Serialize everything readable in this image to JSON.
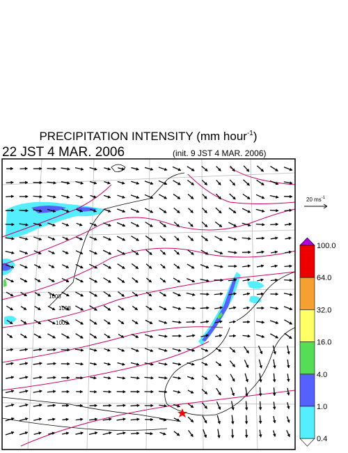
{
  "title": {
    "text": "PRECIPITATION INTENSITY (mm hour",
    "exponent": "-1",
    "close": ")"
  },
  "valid_time": "22 JST 4 MAR. 2006",
  "init_time": "(init. 9 JST 4 MAR. 2006)",
  "scale": {
    "label": "20 ms",
    "exponent": "-1"
  },
  "legend": {
    "labels": [
      "100.0",
      "64.0",
      "32.0",
      "16.0",
      "4.0",
      "1.0",
      "0.4"
    ],
    "colors": [
      "#b000e0",
      "#ee0000",
      "#f5a030",
      "#ffff66",
      "#55dd55",
      "#5560ff",
      "#55eeff",
      "#ffffff"
    ]
  },
  "contour_labels": [
    "1008",
    "1008",
    "1009"
  ]
}
